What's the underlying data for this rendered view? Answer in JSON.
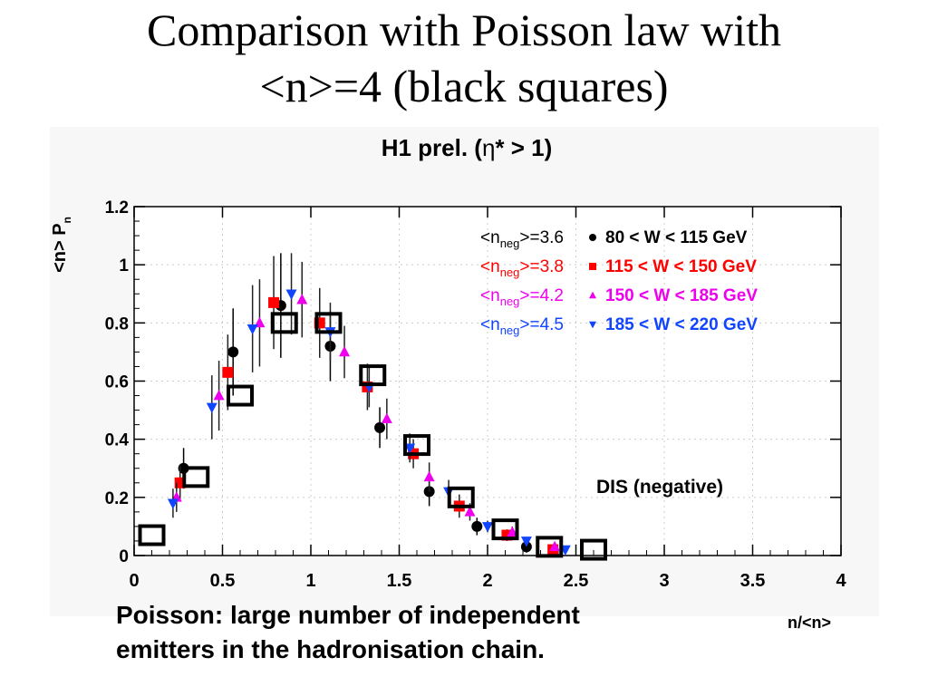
{
  "slide": {
    "title_line1": "Comparison with Poisson law with",
    "title_line2": "<n>=4 (black squares)",
    "caption_line1": "Poisson: large number of independent",
    "caption_line2": "emitters in the hadronisation chain."
  },
  "chart_data": {
    "type": "scatter",
    "title_main": "H1 prel. (",
    "title_eta": "η",
    "title_rest": "* > 1)",
    "ylabel": "<n> P",
    "ylabel_sub": "n",
    "xlabel": "n/<n>",
    "xlim": [
      0,
      4
    ],
    "ylim": [
      0,
      1.2
    ],
    "x_ticks": [
      "0",
      "0.5",
      "1",
      "1.5",
      "2",
      "2.5",
      "3",
      "3.5",
      "4"
    ],
    "y_ticks": [
      "0",
      "0.2",
      "0.4",
      "0.6",
      "0.8",
      "1",
      "1.2"
    ],
    "annotation": "DIS (negative)",
    "legend_position": "top-right",
    "series": [
      {
        "name": "80 < W < 115 GeV",
        "mean_label": "=3.6",
        "color": "#000000",
        "marker": "circle",
        "x": [
          0.28,
          0.56,
          0.83,
          1.11,
          1.39,
          1.67,
          1.94,
          2.22
        ],
        "y": [
          0.3,
          0.7,
          0.86,
          0.72,
          0.44,
          0.22,
          0.1,
          0.03
        ],
        "err": [
          0.07,
          0.15,
          0.18,
          0.12,
          0.07,
          0.05,
          0.03,
          0.02
        ]
      },
      {
        "name": "115 < W < 150 GeV",
        "mean_label": "=3.8",
        "color": "#ff0000",
        "marker": "square",
        "x": [
          0.26,
          0.53,
          0.79,
          1.05,
          1.32,
          1.58,
          1.84,
          2.11,
          2.37
        ],
        "y": [
          0.25,
          0.63,
          0.87,
          0.8,
          0.58,
          0.35,
          0.17,
          0.07,
          0.02
        ],
        "err": [
          0.06,
          0.13,
          0.16,
          0.12,
          0.08,
          0.05,
          0.04,
          0.02,
          0.01
        ]
      },
      {
        "name": "150 < W < 185 GeV",
        "mean_label": "=4.2",
        "color": "#ee00ee",
        "marker": "triangle-up",
        "x": [
          0.24,
          0.48,
          0.71,
          0.95,
          1.19,
          1.43,
          1.67,
          1.9,
          2.14,
          2.38
        ],
        "y": [
          0.2,
          0.55,
          0.8,
          0.88,
          0.7,
          0.47,
          0.27,
          0.15,
          0.08,
          0.03
        ],
        "err": [
          0.05,
          0.12,
          0.15,
          0.13,
          0.09,
          0.07,
          0.05,
          0.03,
          0.02,
          0.01
        ]
      },
      {
        "name": "185 < W < 220 GeV",
        "mean_label": "=4.5",
        "color": "#1144ff",
        "marker": "triangle-down",
        "x": [
          0.22,
          0.44,
          0.67,
          0.89,
          1.11,
          1.33,
          1.56,
          1.78,
          2.0,
          2.22,
          2.44
        ],
        "y": [
          0.18,
          0.51,
          0.78,
          0.9,
          0.77,
          0.58,
          0.37,
          0.22,
          0.1,
          0.05,
          0.02
        ],
        "err": [
          0.05,
          0.11,
          0.15,
          0.14,
          0.1,
          0.07,
          0.05,
          0.04,
          0.02,
          0.01,
          0.01
        ]
      }
    ],
    "poisson": {
      "name": "Poisson <n>=4",
      "color": "#000000",
      "marker": "open-square",
      "x": [
        0.0,
        0.25,
        0.5,
        0.75,
        1.0,
        1.25,
        1.5,
        1.75,
        2.0,
        2.25,
        2.5
      ],
      "y": [
        0.07,
        0.27,
        0.55,
        0.8,
        0.8,
        0.62,
        0.38,
        0.2,
        0.09,
        0.03,
        0.02
      ]
    }
  }
}
